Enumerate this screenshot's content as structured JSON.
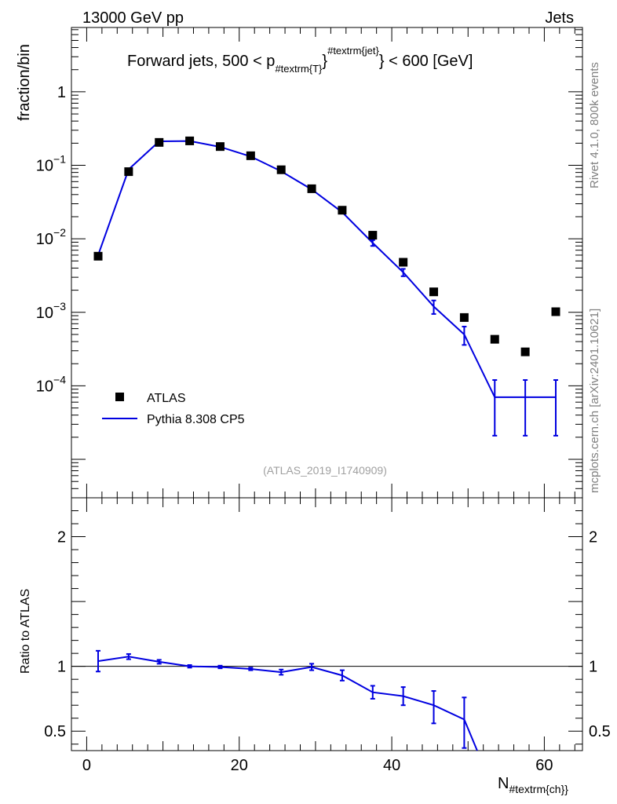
{
  "header": {
    "left": "13000 GeV pp",
    "right": "Jets"
  },
  "side_labels": {
    "rivet": "Rivet 4.1.0,  800k events",
    "mcplots": "mcplots.cern.ch [arXiv:2401.10621]"
  },
  "colors": {
    "data": "#000000",
    "mc": "#0000e0",
    "watermark": "#a0a0a0",
    "side_text": "#808080"
  },
  "chart_data": [
    {
      "type": "scatter",
      "panel": "main",
      "title_parts": {
        "pre": "Forward jets, 500 < p",
        "sub": "#textrm{T}",
        "sup": "#textrm{jet}",
        "post": "} < 600 [GeV]",
        "brace": "}"
      },
      "ylabel": "fraction/bin",
      "yscale": "log",
      "ylim": [
        3e-06,
        7.5
      ],
      "xlim": [
        -2,
        65
      ],
      "y_ticks": [
        {
          "v": 1,
          "label": "1",
          "exp": ""
        },
        {
          "v": 0.1,
          "label": "10",
          "exp": "−1"
        },
        {
          "v": 0.01,
          "label": "10",
          "exp": "−2"
        },
        {
          "v": 0.001,
          "label": "10",
          "exp": "−3"
        },
        {
          "v": 0.0001,
          "label": "10",
          "exp": "−4"
        }
      ],
      "watermark": "(ATLAS_2019_I1740909)",
      "legend": {
        "placement": "bottom-left",
        "data_label": "ATLAS",
        "mc_label": "Pythia 8.308 CP5"
      },
      "series": [
        {
          "name": "ATLAS",
          "x": [
            1.5,
            5.5,
            9.5,
            13.5,
            17.5,
            21.5,
            25.5,
            29.5,
            33.5,
            37.5,
            41.5,
            45.5,
            49.5,
            53.5,
            57.5,
            61.5
          ],
          "values": [
            0.0058,
            0.082,
            0.205,
            0.215,
            0.18,
            0.135,
            0.087,
            0.048,
            0.0245,
            0.0112,
            0.0048,
            0.0019,
            0.00085,
            0.00043,
            0.00029,
            0.00102
          ]
        },
        {
          "name": "Pythia 8.308 CP5",
          "x": [
            1.5,
            5.5,
            9.5,
            13.5,
            17.5,
            21.5,
            25.5,
            29.5,
            33.5,
            37.5,
            41.5,
            45.5,
            49.5,
            53.5,
            57.5,
            61.5
          ],
          "values": [
            0.006,
            0.088,
            0.212,
            0.214,
            0.178,
            0.132,
            0.083,
            0.047,
            0.023,
            0.0088,
            0.0035,
            0.0012,
            0.0005,
            7e-05,
            7e-05,
            7e-05
          ],
          "err_low": [
            0.0059,
            0.087,
            0.209,
            0.212,
            0.176,
            0.13,
            0.081,
            0.046,
            0.0222,
            0.008,
            0.0031,
            0.00095,
            0.00036,
            2.1e-05,
            2.1e-05,
            2.1e-05
          ],
          "err_high": [
            0.0061,
            0.089,
            0.215,
            0.216,
            0.18,
            0.134,
            0.085,
            0.048,
            0.0238,
            0.0096,
            0.0039,
            0.00145,
            0.00064,
            0.00012,
            0.00012,
            0.00012
          ]
        }
      ]
    },
    {
      "type": "line",
      "panel": "ratio",
      "ylabel": "Ratio to ATLAS",
      "xlabel_parts": {
        "main": "N",
        "sub": "#textrm{ch}}"
      },
      "ylim": [
        0.35,
        2.3
      ],
      "xlim": [
        -2,
        65
      ],
      "x_ticks": [
        0,
        20,
        40,
        60
      ],
      "y_ticks": [
        0.5,
        1,
        2
      ],
      "reference_line": 1,
      "series": [
        {
          "name": "Pythia 8.308 CP5",
          "x": [
            1.5,
            5.5,
            9.5,
            13.5,
            17.5,
            21.5,
            25.5,
            29.5,
            33.5,
            37.5,
            41.5,
            45.5,
            49.5,
            51.2
          ],
          "values": [
            1.04,
            1.075,
            1.035,
            1.0,
            0.995,
            0.98,
            0.955,
            0.995,
            0.93,
            0.8,
            0.77,
            0.7,
            0.59,
            0.35
          ],
          "err_low": [
            0.96,
            1.055,
            1.02,
            0.99,
            0.985,
            0.97,
            0.935,
            0.97,
            0.89,
            0.75,
            0.7,
            0.56,
            0.37,
            null
          ],
          "err_high": [
            1.12,
            1.095,
            1.05,
            1.01,
            1.005,
            0.99,
            0.975,
            1.02,
            0.97,
            0.85,
            0.84,
            0.81,
            0.76,
            null
          ]
        }
      ]
    }
  ]
}
